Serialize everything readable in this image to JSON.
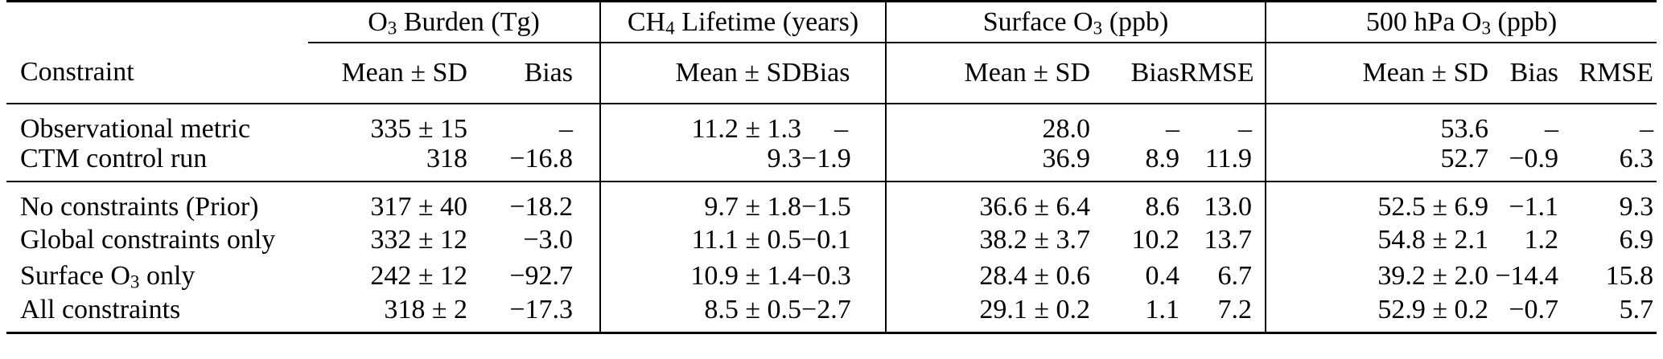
{
  "table": {
    "corner": "Constraint",
    "groups": [
      {
        "t_pre": "O",
        "t_sub": "3",
        "t_post": " Burden (Tg)",
        "cols": [
          "Mean ± SD",
          "Bias"
        ]
      },
      {
        "t_pre": "CH",
        "t_sub": "4",
        "t_post": " Lifetime (years)",
        "cols": [
          "Mean ± SD",
          "Bias"
        ]
      },
      {
        "t_pre": "Surface O",
        "t_sub": "3",
        "t_post": " (ppb)",
        "cols": [
          "Mean ± SD",
          "Bias",
          "RMSE"
        ]
      },
      {
        "t_pre": "500 hPa O",
        "t_sub": "3",
        "t_post": " (ppb)",
        "cols": [
          "Mean ± SD",
          "Bias",
          "RMSE"
        ]
      }
    ],
    "sections": [
      {
        "rows": [
          {
            "l_pre": "Observational metric",
            "l_sub": "",
            "l_post": "",
            "v": [
              "335 ± 15",
              "–",
              "11.2 ± 1.3",
              "–",
              "28.0",
              "–",
              "–",
              "53.6",
              "–",
              "–"
            ]
          },
          {
            "l_pre": "CTM control run",
            "l_sub": "",
            "l_post": "",
            "v": [
              "318",
              "−16.8",
              "9.3",
              "−1.9",
              "36.9",
              "8.9",
              "11.9",
              "52.7",
              "−0.9",
              "6.3"
            ]
          }
        ]
      },
      {
        "rows": [
          {
            "l_pre": "No constraints (Prior)",
            "l_sub": "",
            "l_post": "",
            "v": [
              "317 ± 40",
              "−18.2",
              "9.7 ± 1.8",
              "−1.5",
              "36.6 ± 6.4",
              "8.6",
              "13.0",
              "52.5 ± 6.9",
              "−1.1",
              "9.3"
            ]
          },
          {
            "l_pre": "Global constraints only",
            "l_sub": "",
            "l_post": "",
            "v": [
              "332 ± 12",
              "−3.0",
              "11.1 ± 0.5",
              "−0.1",
              "38.2 ± 3.7",
              "10.2",
              "13.7",
              "54.8 ± 2.1",
              "1.2",
              "6.9"
            ]
          },
          {
            "l_pre": "Surface O",
            "l_sub": "3",
            "l_post": " only",
            "v": [
              "242 ± 12",
              "−92.7",
              "10.9 ± 1.4",
              "−0.3",
              "28.4 ± 0.6",
              "0.4",
              "6.7",
              "39.2 ± 2.0",
              "−14.4",
              "15.8"
            ]
          },
          {
            "l_pre": "All constraints",
            "l_sub": "",
            "l_post": "",
            "v": [
              "318 ± 2",
              "−17.3",
              "8.5 ± 0.5",
              "−2.7",
              "29.1 ± 0.2",
              "1.1",
              "7.2",
              "52.9 ± 0.2",
              "−0.7",
              "5.7"
            ]
          }
        ]
      }
    ],
    "colors": {
      "text": "#000000",
      "background": "#ffffff",
      "rule": "#000000"
    }
  }
}
